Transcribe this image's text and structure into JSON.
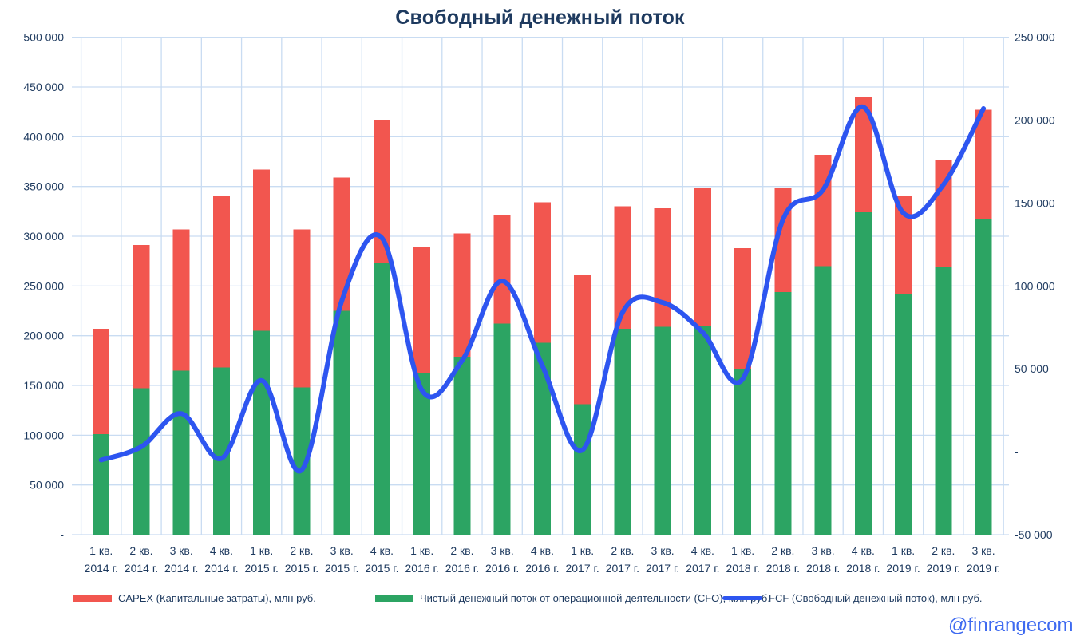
{
  "title": "Свободный денежный поток",
  "watermark": "@finrangecom",
  "colors": {
    "capex": "#f2564f",
    "cfo": "#2ca463",
    "fcf": "#2d55f0",
    "grid": "#c9dcf2",
    "text": "#1e3a5f",
    "watermark": "#3e6af0"
  },
  "legend": [
    {
      "id": "capex",
      "label": "CAPEX (Капитальные затраты), млн руб.",
      "swatch": "rect"
    },
    {
      "id": "cfo",
      "label": "Чистый денежный поток от операционной деятельности (CFO), млн руб.",
      "swatch": "rect"
    },
    {
      "id": "fcf",
      "label": "FCF (Свободный денежный поток), млн руб.",
      "swatch": "line"
    }
  ],
  "chart_data": {
    "type": "combo-stacked-bar-line",
    "title": "Свободный денежный поток",
    "categories": [
      {
        "quarter": "1 кв.",
        "year": "2014 г."
      },
      {
        "quarter": "2 кв.",
        "year": "2014 г."
      },
      {
        "quarter": "3 кв.",
        "year": "2014 г."
      },
      {
        "quarter": "4 кв.",
        "year": "2014 г."
      },
      {
        "quarter": "1 кв.",
        "year": "2015 г."
      },
      {
        "quarter": "2 кв.",
        "year": "2015 г."
      },
      {
        "quarter": "3 кв.",
        "year": "2015 г."
      },
      {
        "quarter": "4 кв.",
        "year": "2015 г."
      },
      {
        "quarter": "1 кв.",
        "year": "2016 г."
      },
      {
        "quarter": "2 кв.",
        "year": "2016 г."
      },
      {
        "quarter": "3 кв.",
        "year": "2016 г."
      },
      {
        "quarter": "4 кв.",
        "year": "2016 г."
      },
      {
        "quarter": "1 кв.",
        "year": "2017 г."
      },
      {
        "quarter": "2 кв.",
        "year": "2017 г."
      },
      {
        "quarter": "3 кв.",
        "year": "2017 г."
      },
      {
        "quarter": "4 кв.",
        "year": "2017 г."
      },
      {
        "quarter": "1 кв.",
        "year": "2018 г."
      },
      {
        "quarter": "2 кв.",
        "year": "2018 г."
      },
      {
        "quarter": "3 кв.",
        "year": "2018 г."
      },
      {
        "quarter": "4 кв.",
        "year": "2018 г."
      },
      {
        "quarter": "1 кв.",
        "year": "2019 г."
      },
      {
        "quarter": "2 кв.",
        "year": "2019 г."
      },
      {
        "quarter": "3 кв.",
        "year": "2019 г."
      }
    ],
    "series": [
      {
        "name": "Чистый денежный поток от операционной деятельности (CFO), млн руб.",
        "type": "bar",
        "stack": "base",
        "axis": "left",
        "color": "#2ca463",
        "values": [
          101000,
          147000,
          165000,
          168000,
          205000,
          148000,
          225000,
          273000,
          163000,
          179000,
          212000,
          193000,
          131000,
          207000,
          209000,
          210000,
          166000,
          244000,
          270000,
          324000,
          242000,
          269000,
          317000
        ]
      },
      {
        "name": "CAPEX (Капитальные затраты), млн руб.",
        "type": "bar",
        "stack": "top",
        "axis": "left",
        "color": "#f2564f",
        "values": [
          106000,
          144000,
          142000,
          172000,
          162000,
          159000,
          134000,
          144000,
          126000,
          124000,
          109000,
          141000,
          130000,
          123000,
          119000,
          138000,
          122000,
          104000,
          112000,
          116000,
          98000,
          108000,
          110000
        ]
      },
      {
        "name": "FCF (Свободный денежный поток), млн руб.",
        "type": "line",
        "smooth": true,
        "axis": "right",
        "color": "#2d55f0",
        "values": [
          -5000,
          3000,
          23000,
          -4000,
          43000,
          -11000,
          91000,
          129000,
          37000,
          55000,
          103000,
          52000,
          1000,
          84000,
          90000,
          72000,
          44000,
          140000,
          158000,
          208000,
          144000,
          161000,
          207000
        ]
      }
    ],
    "left_axis": {
      "min": 0,
      "max": 500000,
      "step": 50000,
      "tick_labels": [
        "-",
        "50 000",
        "100 000",
        "150 000",
        "200 000",
        "250 000",
        "300 000",
        "350 000",
        "400 000",
        "450 000",
        "500 000"
      ]
    },
    "right_axis": {
      "min": -50000,
      "max": 250000,
      "step": 50000,
      "tick_labels": [
        "-50 000",
        "-",
        "50 000",
        "100 000",
        "150 000",
        "200 000",
        "250 000"
      ]
    },
    "grid": {
      "horizontal": true,
      "vertical": true
    },
    "legend_position": "bottom"
  }
}
